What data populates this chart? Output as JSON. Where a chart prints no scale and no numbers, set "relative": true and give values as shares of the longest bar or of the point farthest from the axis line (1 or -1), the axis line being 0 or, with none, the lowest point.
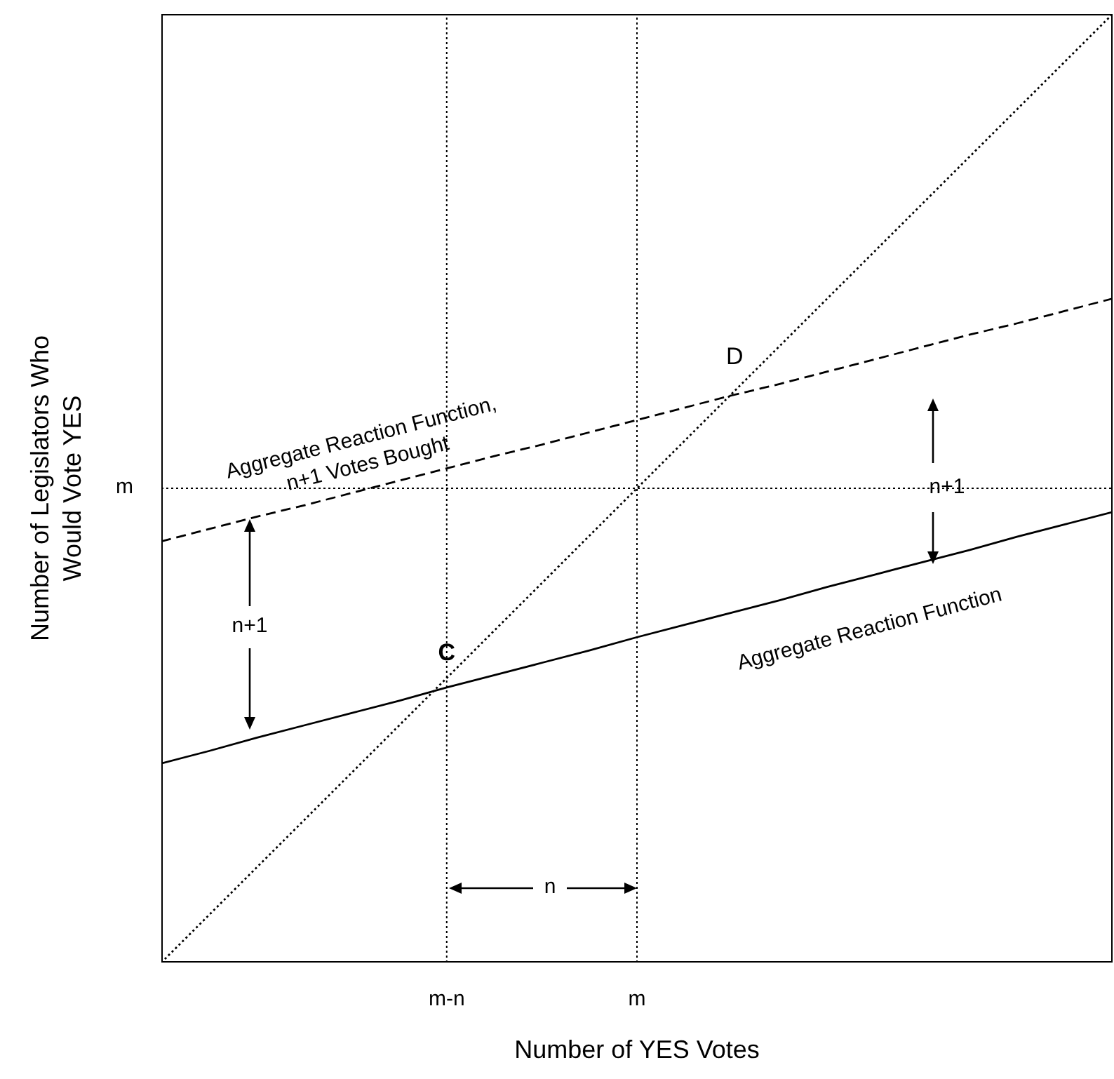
{
  "chart_data": {
    "type": "line",
    "relative": true,
    "xlabel": "Number of YES Votes",
    "ylabel": "Number of Legislators Who\nWould Vote YES",
    "marker": "none",
    "categories": [
      null,
      null,
      null,
      null,
      null,
      null,
      "m-n",
      null,
      null,
      null,
      "m",
      null,
      null,
      null,
      null,
      null,
      null,
      null,
      null,
      null,
      null
    ],
    "series": [
      {
        "color": "#000000",
        "line_style": "dotted",
        "values": [
          0,
          0.05,
          0.1,
          0.15,
          0.2,
          0.25,
          0.3,
          0.35,
          0.4,
          0.45,
          0.5,
          0.55,
          0.6,
          0.65,
          0.7,
          0.75,
          0.8,
          0.85,
          0.9,
          0.95,
          1
        ]
      },
      {
        "name": "Aggregate Reaction Function",
        "color": "#000000",
        "line_style": "solid",
        "values": [
          0.21,
          0.223,
          0.237,
          0.25,
          0.263,
          0.276,
          0.29,
          0.303,
          0.316,
          0.329,
          0.343,
          0.356,
          0.369,
          0.382,
          0.396,
          0.409,
          0.422,
          0.435,
          0.449,
          0.462,
          0.475
        ]
      },
      {
        "name": "Aggregate Reaction Function,\nn+1 Votes Bought",
        "color": "#000000",
        "line_style": "dashed",
        "values": [
          0.444,
          0.457,
          0.47,
          0.482,
          0.495,
          0.508,
          0.521,
          0.534,
          0.546,
          0.559,
          0.572,
          0.585,
          0.598,
          0.61,
          0.623,
          0.636,
          0.649,
          0.662,
          0.674,
          0.687,
          0.7
        ]
      }
    ],
    "ref_lines": [
      {
        "axis": "x",
        "value": "m",
        "line_style": "dotted",
        "color": "#000000"
      },
      {
        "axis": "y",
        "value": 0.5,
        "label": "m",
        "line_style": "dotted",
        "color": "#000000"
      },
      {
        "axis": "x",
        "value": "m-n",
        "line_style": "dotted",
        "color": "#000000"
      }
    ],
    "annotations": [
      {
        "text": "C",
        "x": "m-n",
        "y": 0.29
      },
      {
        "text": "D",
        "y": 0.61
      },
      "n+1",
      "n+1",
      "n"
    ]
  }
}
